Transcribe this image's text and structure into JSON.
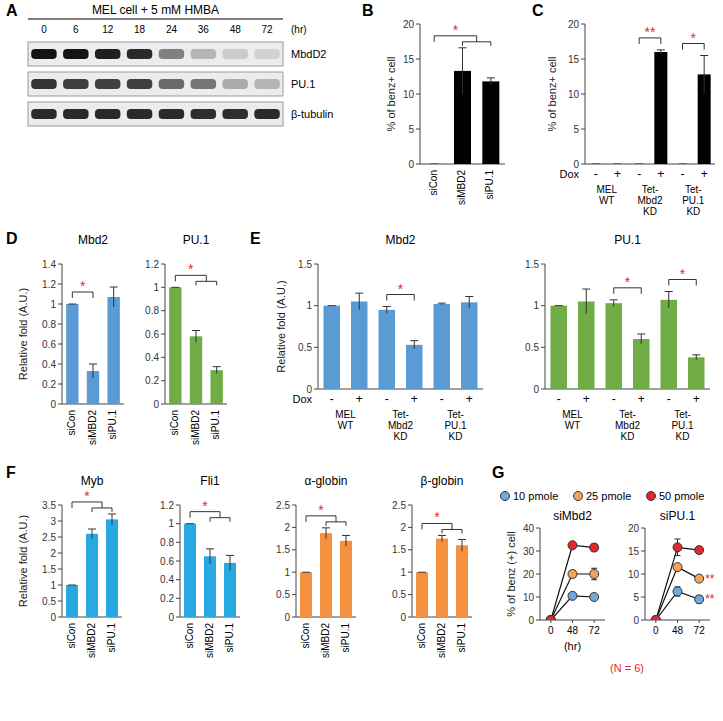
{
  "chart_data": [
    {
      "type": "western_blot",
      "panel_label": "A",
      "title": "MEL cell + 5 mM HMBA",
      "x_label": "(hr)",
      "categories": [
        "0",
        "6",
        "12",
        "18",
        "24",
        "36",
        "48",
        "72"
      ],
      "series": [
        {
          "name": "MbdD2",
          "values": [
            1,
            1,
            0.95,
            0.9,
            0.5,
            0.25,
            0.15,
            0.12
          ]
        },
        {
          "name": "PU.1",
          "values": [
            0.85,
            0.8,
            0.8,
            0.8,
            0.6,
            0.55,
            0.3,
            0.25
          ]
        },
        {
          "name": "β-tubulin",
          "values": [
            0.9,
            0.9,
            0.9,
            0.9,
            0.9,
            0.88,
            0.88,
            0.9
          ]
        }
      ]
    },
    {
      "type": "bar",
      "panel_label": "B",
      "y_label": "% of benz+ cell",
      "categories": [
        "siCon",
        "siMBD2",
        "siPU.1"
      ],
      "values": [
        0,
        13.3,
        11.8
      ],
      "errors": [
        0,
        3.3,
        0.5
      ],
      "color": "#000000",
      "ylim": [
        0,
        20
      ],
      "yticks": [
        0,
        5,
        10,
        15,
        20
      ],
      "brackets": [
        {
          "text": "*",
          "from": 0,
          "to": [
            1,
            2
          ]
        }
      ]
    },
    {
      "type": "bar",
      "panel_label": "C",
      "y_label": "% of benz+ cell",
      "category_axis_label": "Dox",
      "categories": [
        "-",
        "+",
        "-",
        "+",
        "-",
        "+"
      ],
      "groups": [
        "MEL WT",
        "Tet-Mbd2 KD",
        "Tet-PU.1 KD"
      ],
      "values": [
        0,
        0,
        0,
        16,
        0,
        12.8
      ],
      "errors": [
        0,
        0,
        0,
        0.3,
        0,
        2.7
      ],
      "color": "#000000",
      "ylim": [
        0,
        20
      ],
      "yticks": [
        0,
        5,
        10,
        15,
        20
      ],
      "brackets": [
        {
          "text": "**",
          "from": 2,
          "to": [
            3
          ]
        },
        {
          "text": "*",
          "from": 4,
          "to": [
            5
          ]
        }
      ]
    },
    {
      "type": "bar",
      "panel_label": "D",
      "title": "Mbd2",
      "y_label": "Relative fold (A.U.)",
      "categories": [
        "siCon",
        "siMBD2",
        "siPU.1"
      ],
      "values": [
        1,
        0.33,
        1.07
      ],
      "errors": [
        0,
        0.07,
        0.1
      ],
      "color": "#5b9bd5",
      "ylim": [
        0,
        1.4
      ],
      "yticks": [
        0,
        0.2,
        0.4,
        0.6,
        0.8,
        1,
        1.2,
        1.4
      ],
      "brackets": [
        {
          "text": "*",
          "from": 0,
          "to": [
            1
          ]
        }
      ]
    },
    {
      "type": "bar",
      "title": "PU.1",
      "categories": [
        "siCon",
        "siMBD2",
        "siPU.1"
      ],
      "values": [
        1,
        0.58,
        0.29
      ],
      "errors": [
        0,
        0.05,
        0.03
      ],
      "color": "#70ad47",
      "ylim": [
        0,
        1.2
      ],
      "yticks": [
        0,
        0.2,
        0.4,
        0.6,
        0.8,
        1,
        1.2
      ],
      "brackets": [
        {
          "text": "*",
          "from": 0,
          "to": [
            1,
            2
          ]
        }
      ]
    },
    {
      "type": "bar",
      "panel_label": "E",
      "title": "Mbd2",
      "y_label": "Relative fold (A.U.)",
      "category_axis_label": "Dox",
      "categories": [
        "-",
        "+",
        "-",
        "+",
        "-",
        "+"
      ],
      "groups": [
        "MEL WT",
        "Tet-Mbd2 KD",
        "Tet-PU.1 KD"
      ],
      "values": [
        1,
        1.05,
        0.95,
        0.53,
        1.02,
        1.04
      ],
      "errors": [
        0,
        0.1,
        0.04,
        0.05,
        0.01,
        0.07
      ],
      "color": "#5b9bd5",
      "ylim": [
        0,
        1.5
      ],
      "yticks": [
        0,
        0.5,
        1,
        1.5
      ],
      "brackets": [
        {
          "text": "*",
          "from": 2,
          "to": [
            3
          ]
        }
      ]
    },
    {
      "type": "bar",
      "title": "PU.1",
      "categories": [
        "-",
        "+",
        "-",
        "+",
        "-",
        "+"
      ],
      "groups": [
        "MEL WT",
        "Tet-Mbd2 KD",
        "Tet-PU.1 KD"
      ],
      "values": [
        1,
        1.05,
        1.03,
        0.6,
        1.07,
        0.38
      ],
      "errors": [
        0,
        0.15,
        0.04,
        0.06,
        0.1,
        0.03
      ],
      "color": "#70ad47",
      "ylim": [
        0,
        1.5
      ],
      "yticks": [
        0,
        0.5,
        1,
        1.5
      ],
      "brackets": [
        {
          "text": "*",
          "from": 2,
          "to": [
            3
          ]
        },
        {
          "text": "*",
          "from": 4,
          "to": [
            5
          ]
        }
      ]
    },
    {
      "type": "bar",
      "panel_label": "F",
      "title": "Myb",
      "y_label": "Relative fold (A.U.)",
      "categories": [
        "siCon",
        "siMBD2",
        "siPU.1"
      ],
      "values": [
        1,
        2.6,
        3.05
      ],
      "errors": [
        0,
        0.15,
        0.17
      ],
      "color": "#29a9e1",
      "ylim": [
        0,
        3.5
      ],
      "yticks": [
        0,
        0.5,
        1,
        1.5,
        2,
        2.5,
        3,
        3.5
      ],
      "brackets": [
        {
          "text": "*",
          "from": 0,
          "to": [
            1,
            2
          ]
        }
      ]
    },
    {
      "type": "bar",
      "title": "Fli1",
      "categories": [
        "siCon",
        "siMBD2",
        "siPU.1"
      ],
      "values": [
        1,
        0.65,
        0.58
      ],
      "errors": [
        0,
        0.08,
        0.08
      ],
      "color": "#29a9e1",
      "ylim": [
        0,
        1.2
      ],
      "yticks": [
        0,
        0.2,
        0.4,
        0.6,
        0.8,
        1,
        1.2
      ],
      "brackets": [
        {
          "text": "*",
          "from": 0,
          "to": [
            1,
            2
          ]
        }
      ]
    },
    {
      "type": "bar",
      "title": "α-globin",
      "categories": [
        "siCon",
        "siMBD2",
        "siPU.1"
      ],
      "values": [
        1,
        1.87,
        1.7
      ],
      "errors": [
        0,
        0.12,
        0.12
      ],
      "color": "#f5913e",
      "ylim": [
        0,
        2.5
      ],
      "yticks": [
        0,
        0.5,
        1,
        1.5,
        2,
        2.5
      ],
      "brackets": [
        {
          "text": "*",
          "from": 0,
          "to": [
            1,
            2
          ]
        }
      ]
    },
    {
      "type": "bar",
      "title": "β-globin",
      "categories": [
        "siCon",
        "siMBD2",
        "siPU.1"
      ],
      "values": [
        1,
        1.75,
        1.6
      ],
      "errors": [
        0,
        0.07,
        0.13
      ],
      "color": "#f5913e",
      "ylim": [
        0,
        2.5
      ],
      "yticks": [
        0,
        0.5,
        1,
        1.5,
        2,
        2.5
      ],
      "brackets": [
        {
          "text": "*",
          "from": 0,
          "to": [
            1,
            2
          ]
        }
      ]
    },
    {
      "type": "line",
      "panel_label": "G",
      "title": "siMbd2",
      "y_label": "% of benz (+) cell",
      "x_label": "(hr)",
      "categories": [
        "0",
        "48",
        "72"
      ],
      "marker": "circle",
      "legend": "top",
      "ylim": [
        0,
        40
      ],
      "yticks": [
        0,
        10,
        20,
        30,
        40
      ],
      "series": [
        {
          "name": "10 pmole",
          "color": "#6fa8dc",
          "values": [
            0,
            10.5,
            10
          ],
          "errors": [
            0,
            1,
            0.8
          ]
        },
        {
          "name": "25 pmole",
          "color": "#f4a35c",
          "values": [
            0,
            20,
            20
          ],
          "errors": [
            0,
            1.5,
            2.5
          ]
        },
        {
          "name": "50 pmole",
          "color": "#e0282e",
          "values": [
            0,
            32.5,
            31.5
          ],
          "errors": [
            0,
            0.5,
            1.5
          ]
        }
      ]
    },
    {
      "type": "line",
      "title": "siPU.1",
      "note": "(N = 6)",
      "categories": [
        "0",
        "48",
        "72"
      ],
      "marker": "circle",
      "ylim": [
        0,
        20
      ],
      "yticks": [
        0,
        5,
        10,
        15,
        20
      ],
      "series": [
        {
          "color": "#6fa8dc",
          "values": [
            0,
            6.2,
            4.5
          ],
          "errors": [
            0,
            1,
            0.8
          ],
          "annotations": [
            {
              "index": 2,
              "text": "**"
            }
          ]
        },
        {
          "color": "#f4a35c",
          "values": [
            0,
            11.5,
            9
          ],
          "errors": [
            0,
            0.5,
            0.4
          ],
          "annotations": [
            {
              "index": 2,
              "text": "**"
            }
          ]
        },
        {
          "color": "#e0282e",
          "values": [
            0,
            15.8,
            15.2
          ],
          "errors": [
            0,
            1.8,
            0.6
          ]
        }
      ]
    }
  ]
}
